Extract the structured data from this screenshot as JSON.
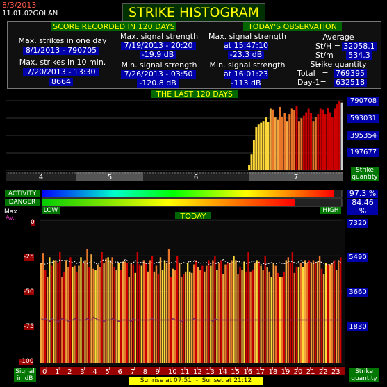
{
  "header": {
    "date": "8/3/2013",
    "time": "11.01.02",
    "location": "GOLAN",
    "title": "STRIKE HISTOGRAM"
  },
  "score": {
    "heading": "SCORE RECORDED IN 120 DAYS",
    "max_day_label": "Max. strikes in one day",
    "max_day_date": "8/1/2013 - 790705",
    "max_10min_label": "Max. strikes in 10 min.",
    "max_10min_date": "7/20/2013 - 13:30",
    "max_10min_value": "8664",
    "max_signal_label": "Max. signal strength",
    "max_signal_date": "7/19/2013 - 20:20",
    "max_signal_value": "-19.9 dB",
    "min_signal_label": "Min. signal strength",
    "min_signal_date": "7/26/2013 - 03:50",
    "min_signal_value": "-120.8 dB"
  },
  "today": {
    "heading": "TODAY'S OBSERVATION",
    "max_signal_label": "Max. signal strength",
    "max_signal_time": "at 15:47:10",
    "max_signal_value": "-23.3 dB",
    "min_signal_label": "Min. signal strength",
    "min_signal_time": "at 16:01:23",
    "min_signal_value": "-113 dB",
    "average_label": "Average",
    "sth_label": "St/H =",
    "sth_value": "32058.1",
    "stm_label": "St/m =",
    "stm_value": "534.3",
    "quantity_label": "Strike quantity",
    "total_label": "Total",
    "total_eq": "=",
    "total_value": "769395",
    "day1_label": "Day-1=",
    "day1_value": "632518"
  },
  "last120": {
    "heading": "THE LAST 120 DAYS",
    "axis_values": [
      "790708",
      "593031",
      "395354",
      "197677"
    ],
    "strike_label": "Strike\nquantity",
    "month_labels": [
      "4",
      "5",
      "6",
      "7"
    ]
  },
  "activity": {
    "activity_label": "ACTIVITY",
    "danger_label": "DANGER",
    "activity_pct": "97.3 %",
    "danger_pct": "84.46 %",
    "activity_value": 0.973,
    "danger_value": 0.8446,
    "low_label": "LOW",
    "high_label": "HIGH"
  },
  "today_chart": {
    "heading": "TODAY",
    "max_label": "Max",
    "av_label": "Av.",
    "left_ticks": [
      "0",
      "-25",
      "-50",
      "-75",
      "-100"
    ],
    "right_ticks": [
      "7320",
      "5490",
      "3660",
      "1830"
    ],
    "signal_label": "Signal\nin dB",
    "strike_label": "Strike\nquantity",
    "hours": [
      "0",
      "1",
      "2",
      "3",
      "4",
      "5",
      "6",
      "7",
      "8",
      "9",
      "10",
      "11",
      "12",
      "13",
      "14",
      "15",
      "16",
      "17",
      "18",
      "19",
      "20",
      "21",
      "22",
      "23"
    ],
    "sunrise_text": "Sunrise at 07:51  -  Sunset at 21:12"
  },
  "chart_data": [
    {
      "type": "bar",
      "title": "THE LAST 120 DAYS",
      "ylabel": "Strike quantity",
      "ylim": [
        0,
        790708
      ],
      "x_labels": [
        "4",
        "5",
        "6",
        "7"
      ],
      "values": [
        0,
        0,
        0,
        0,
        0,
        0,
        0,
        0,
        0,
        0,
        0,
        0,
        0,
        0,
        0,
        0,
        0,
        0,
        0,
        0,
        0,
        0,
        0,
        0,
        0,
        0,
        0,
        0,
        0,
        0,
        0,
        0,
        0,
        0,
        0,
        0,
        0,
        0,
        0,
        0,
        0,
        0,
        0,
        0,
        0,
        0,
        0,
        0,
        0,
        0,
        0,
        0,
        0,
        0,
        0,
        0,
        0,
        0,
        0,
        0,
        0,
        0,
        0,
        0,
        0,
        0,
        0,
        0,
        0,
        0,
        0,
        0,
        0,
        0,
        0,
        0,
        0,
        0,
        0,
        0,
        0,
        0,
        0,
        0,
        0,
        0,
        0,
        0,
        0,
        0,
        0,
        0,
        0,
        0,
        0,
        0,
        0,
        0,
        0,
        0,
        0,
        0,
        60000,
        180000,
        340000,
        490000,
        520000,
        540000,
        560000,
        600000,
        550000,
        700000,
        690000,
        600000,
        580000,
        720000,
        610000,
        650000,
        560000,
        640000,
        700000,
        680000,
        730000,
        560000,
        590000,
        620000,
        660000,
        700000,
        650000,
        560000,
        600000,
        640000,
        700000,
        690000,
        640000,
        710000,
        660000,
        600000,
        700000,
        750000,
        790705,
        769395
      ]
    },
    {
      "type": "bar",
      "title": "TODAY",
      "ylabel": "Signal in dB",
      "y2label": "Strike quantity",
      "ylim": [
        -100,
        0
      ],
      "y2lim": [
        0,
        7320
      ],
      "x_labels": [
        "0",
        "1",
        "2",
        "3",
        "4",
        "5",
        "6",
        "7",
        "8",
        "9",
        "10",
        "11",
        "12",
        "13",
        "14",
        "15",
        "16",
        "17",
        "18",
        "19",
        "20",
        "21",
        "22",
        "23"
      ],
      "max_series": [
        -30,
        -23,
        -35,
        -40,
        -26,
        -32,
        -28,
        -28,
        -30,
        -22,
        -40,
        -36,
        -28,
        -33,
        -26,
        -33,
        -32,
        -36,
        -32,
        -26,
        -30,
        -28,
        -20,
        -33,
        -24,
        -34,
        -35,
        -31,
        -33,
        -22,
        -30,
        -27,
        -26,
        -28,
        -26,
        -33,
        -35,
        -30,
        -35,
        -29,
        -29,
        -30,
        -40,
        -30,
        -31,
        -37,
        -22,
        -31,
        -32,
        -28,
        -30,
        -36,
        -28,
        -25,
        -36,
        -32,
        -38,
        -26,
        -35,
        -28,
        -30,
        -20,
        -40,
        -34,
        -35,
        -25,
        -30,
        -40,
        -38,
        -36,
        -30,
        -36,
        -37,
        -31,
        -28,
        -33,
        -35,
        -32,
        -36,
        -32,
        -28,
        -32,
        -28,
        -25,
        -35,
        -30,
        -28,
        -38,
        -31,
        -30,
        -30,
        -28,
        -25,
        -28,
        -38,
        -33,
        -35,
        -29,
        -36,
        -22,
        -36,
        -35,
        -30,
        -28,
        -29,
        -32,
        -35,
        -25,
        -33,
        -36,
        -40,
        -30,
        -32,
        -37,
        -40,
        -40,
        -36,
        -28,
        -26,
        -30,
        -22,
        -37,
        -33,
        -33,
        -30,
        -33,
        -28,
        -30,
        -28,
        -30,
        -28,
        -30,
        -29,
        -25,
        -34,
        -38,
        -30,
        -31,
        -31,
        -30,
        -28,
        -35,
        -28,
        -26
      ],
      "avg_series": [
        -69,
        -70,
        -69,
        -70,
        -71,
        -69,
        -70,
        -70,
        -72,
        -70,
        -69,
        -70,
        -70,
        -71,
        -70,
        -70,
        -69,
        -70,
        -70,
        -70,
        -70,
        -70,
        -69,
        -70,
        -70,
        -68,
        -69,
        -70,
        -70,
        -70,
        -71,
        -70,
        -70,
        -70,
        -69,
        -70,
        -70,
        -71,
        -70,
        -70,
        -70,
        -70,
        -70,
        -71,
        -69,
        -70,
        -70,
        -70,
        -70,
        -70,
        -70,
        -70,
        -70,
        -69,
        -70,
        -70,
        -70,
        -70,
        -70,
        -70,
        -70,
        -70,
        -70,
        -69,
        -70,
        -70,
        -70,
        -71,
        -70,
        -70,
        -70,
        -70,
        -70,
        -69,
        -70,
        -70,
        -70,
        -70,
        -70,
        -70,
        -70,
        -70,
        -71,
        -69,
        -70,
        -70,
        -70,
        -70,
        -70,
        -70,
        -70,
        -70,
        -70,
        -70,
        -70,
        -70,
        -70,
        -70,
        -70,
        -70,
        -70,
        -70,
        -70,
        -70,
        -70,
        -70,
        -70,
        -70,
        -70,
        -70,
        -70,
        -70,
        -70,
        -70,
        -70,
        -70,
        -70,
        -70,
        -70,
        -70,
        -70,
        -70,
        -70,
        -70,
        -70,
        -70,
        -70,
        -70,
        -70,
        -70,
        -70,
        -70,
        -70,
        -70,
        -70,
        -70,
        -70,
        -70,
        -70,
        -70,
        -70,
        -70,
        -70,
        -70
      ],
      "strike_quantity_series": [
        5100,
        5100,
        5050,
        5100,
        5150,
        5150,
        5200,
        5250,
        5200,
        5300,
        5250,
        5250,
        5300,
        5200,
        5200,
        5150,
        5200,
        5100,
        5150,
        5250,
        5200,
        5050,
        5100,
        5150,
        5250,
        5200,
        5100,
        5050,
        5150,
        5250,
        5300,
        5250,
        5200,
        5200,
        5100,
        5150,
        5200,
        5150,
        5150,
        5150,
        5300,
        5250,
        5100,
        5100,
        5150,
        5250,
        5150,
        5150,
        5150,
        5150,
        5100,
        5100,
        5100,
        5150,
        5100,
        5150,
        5150,
        5200,
        5250,
        5200,
        5200,
        5100,
        5150,
        5100,
        5200,
        5150,
        5100,
        5100,
        5150,
        5100,
        5150,
        5250,
        5100,
        5250,
        5200,
        5150,
        5100,
        5150,
        5100,
        5150,
        5050,
        5100,
        5150,
        5100,
        5100,
        5200,
        5250,
        5300,
        5200,
        5150,
        5100,
        5150,
        5100,
        5150,
        5250,
        5150,
        5100,
        5150,
        5100,
        5150,
        5150,
        5250,
        5150,
        5150,
        5150,
        5050,
        5100,
        5050,
        5100,
        5100,
        5150,
        5100,
        5100,
        5100,
        5150,
        5100,
        5100,
        5100,
        5200,
        5250,
        5150,
        5150,
        5100,
        5200,
        5250,
        5150,
        5100,
        5150,
        5150,
        5150,
        5100,
        5150,
        5200,
        5200,
        5150,
        5100,
        5050,
        5050,
        5050,
        5100,
        5250,
        5200,
        5250,
        5150
      ]
    }
  ],
  "colors": {
    "bar_red": "#cc0000",
    "bar_orange": "#e8762a",
    "bar_light": "#f2a640",
    "bar_yellow": "#ffd83a",
    "accent_blue": "#0000aa",
    "accent_green": "#007700",
    "title_yellow": "#ffff00"
  }
}
